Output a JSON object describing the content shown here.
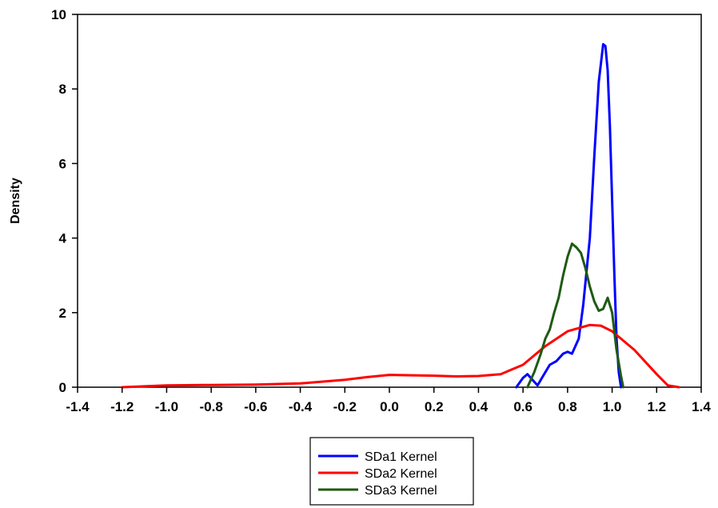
{
  "chart_data": {
    "type": "line",
    "title": "",
    "xlabel": "",
    "ylabel": "Density",
    "xlim": [
      -1.4,
      1.4
    ],
    "ylim": [
      0,
      10
    ],
    "x_ticks": [
      "-1.4",
      "-1.2",
      "-1.0",
      "-0.8",
      "-0.6",
      "-0.4",
      "-0.2",
      "0.0",
      "0.2",
      "0.4",
      "0.6",
      "0.8",
      "1.0",
      "1.2",
      "1.4"
    ],
    "y_ticks": [
      "0",
      "2",
      "4",
      "6",
      "8",
      "10"
    ],
    "grid": false,
    "legend_position": "bottom-center",
    "series": [
      {
        "name": "SDa1 Kernel",
        "color": "#0000ff",
        "x": [
          0.57,
          0.6,
          0.62,
          0.645,
          0.665,
          0.69,
          0.72,
          0.75,
          0.78,
          0.8,
          0.82,
          0.85,
          0.87,
          0.9,
          0.92,
          0.94,
          0.96,
          0.97,
          0.98,
          0.99,
          1.0,
          1.01,
          1.02,
          1.03,
          1.04
        ],
        "y": [
          0.0,
          0.25,
          0.35,
          0.18,
          0.05,
          0.3,
          0.6,
          0.7,
          0.9,
          0.95,
          0.9,
          1.3,
          2.2,
          4.0,
          6.2,
          8.2,
          9.2,
          9.15,
          8.5,
          7.0,
          5.0,
          3.0,
          1.3,
          0.4,
          0.0
        ]
      },
      {
        "name": "SDa2 Kernel",
        "color": "#ff0000",
        "x": [
          -1.2,
          -1.0,
          -0.8,
          -0.6,
          -0.4,
          -0.2,
          -0.1,
          0.0,
          0.1,
          0.2,
          0.3,
          0.4,
          0.5,
          0.6,
          0.7,
          0.8,
          0.9,
          0.95,
          1.0,
          1.1,
          1.2,
          1.25,
          1.3
        ],
        "y": [
          0.0,
          0.05,
          0.06,
          0.07,
          0.1,
          0.2,
          0.27,
          0.33,
          0.32,
          0.31,
          0.29,
          0.3,
          0.35,
          0.6,
          1.1,
          1.5,
          1.67,
          1.65,
          1.5,
          1.0,
          0.35,
          0.05,
          0.0
        ]
      },
      {
        "name": "SDa3 Kernel",
        "color": "#1e5a12",
        "x": [
          0.62,
          0.65,
          0.68,
          0.7,
          0.72,
          0.74,
          0.76,
          0.78,
          0.8,
          0.82,
          0.84,
          0.86,
          0.88,
          0.9,
          0.92,
          0.94,
          0.96,
          0.98,
          1.0,
          1.02,
          1.04,
          1.05
        ],
        "y": [
          0.0,
          0.4,
          0.9,
          1.3,
          1.55,
          2.0,
          2.4,
          3.0,
          3.5,
          3.85,
          3.75,
          3.6,
          3.2,
          2.7,
          2.3,
          2.05,
          2.1,
          2.4,
          2.0,
          1.0,
          0.3,
          0.0
        ]
      }
    ]
  }
}
